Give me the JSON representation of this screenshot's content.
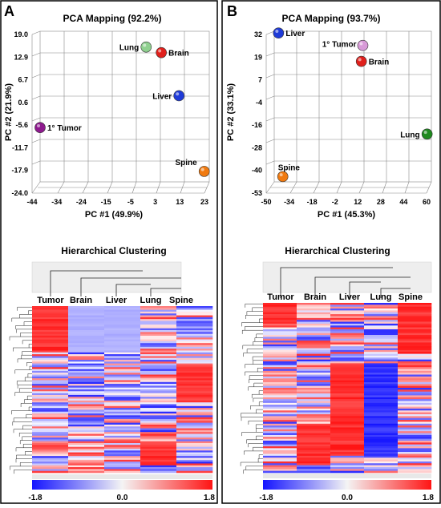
{
  "panels": [
    {
      "letter": "A",
      "pca": {
        "title": "PCA Mapping (92.2%)",
        "xlabel": "PC #1 (49.9%)",
        "ylabel": "PC #2 (21.9%)",
        "xticks": [
          "-44",
          "-34",
          "-24",
          "-15",
          "-5",
          "3",
          "13",
          "23"
        ],
        "yticks": [
          "19.0",
          "12.9",
          "6.7",
          "0.6",
          "-5.6",
          "-11.7",
          "-17.9",
          "-24.0"
        ]
      },
      "clustering": {
        "title": "Hierarchical Clustering",
        "columns": [
          "Tumor",
          "Brain",
          "Liver",
          "Lung",
          "Spine"
        ],
        "scale": [
          "-1.8",
          "0.0",
          "1.8"
        ]
      }
    },
    {
      "letter": "B",
      "pca": {
        "title": "PCA Mapping (93.7%)",
        "xlabel": "PC #1 (45.3%)",
        "ylabel": "PC #2 (33.1%)",
        "xticks": [
          "-50",
          "-34",
          "-18",
          "-2",
          "12",
          "28",
          "44",
          "60"
        ],
        "yticks": [
          "32",
          "19",
          "7",
          "-4",
          "-16",
          "-28",
          "-40",
          "-53"
        ]
      },
      "clustering": {
        "title": "Hierarchical Clustering",
        "columns": [
          "Tumor",
          "Brain",
          "Liver",
          "Lung",
          "Spine"
        ],
        "scale": [
          "-1.8",
          "0.0",
          "1.8"
        ]
      }
    }
  ],
  "chart_data": [
    {
      "type": "scatter",
      "title": "PCA Mapping (92.2%)",
      "xlabel": "PC #1 (49.9%)",
      "ylabel": "PC #2 (21.9%)",
      "xlim": [
        -44,
        23
      ],
      "ylim": [
        -24,
        19
      ],
      "points": [
        {
          "label": "Lung",
          "x": -2,
          "y": 14.5,
          "color": "#8fd08f"
        },
        {
          "label": "Brain",
          "x": 4,
          "y": 12.9,
          "color": "#e0201c"
        },
        {
          "label": "Liver",
          "x": 11,
          "y": 0.6,
          "color": "#1f3bd8"
        },
        {
          "label": "1° Tumor",
          "x": -44,
          "y": -8.5,
          "color": "#8e1a8e"
        },
        {
          "label": "Spine",
          "x": 21,
          "y": -21,
          "color": "#f07a10"
        }
      ]
    },
    {
      "type": "scatter",
      "title": "PCA Mapping (93.7%)",
      "xlabel": "PC #1 (45.3%)",
      "ylabel": "PC #2 (33.1%)",
      "xlim": [
        -50,
        60
      ],
      "ylim": [
        -53,
        32
      ],
      "points": [
        {
          "label": "Liver",
          "x": -47,
          "y": 31,
          "color": "#1f3bd8"
        },
        {
          "label": "1° Tumor",
          "x": 12,
          "y": 24,
          "color": "#d89ad8"
        },
        {
          "label": "Brain",
          "x": 11,
          "y": 15,
          "color": "#e0201c"
        },
        {
          "label": "Lung",
          "x": 57,
          "y": -26,
          "color": "#1f8a1f"
        },
        {
          "label": "Spine",
          "x": -44,
          "y": -50,
          "color": "#f07a10"
        }
      ]
    },
    {
      "type": "heatmap",
      "title": "Hierarchical Clustering",
      "columns": [
        "Tumor",
        "Brain",
        "Liver",
        "Lung",
        "Spine"
      ],
      "colorscale": {
        "min": -1.8,
        "mid": 0.0,
        "max": 1.8,
        "low": "#1a1aff",
        "high": "#ff1a1a"
      },
      "columns_profile": [
        {
          "name": "Tumor",
          "block": "top-high",
          "block_fraction": 0.27
        },
        {
          "name": "Brain",
          "block": "top-low",
          "block_fraction": 0.27
        },
        {
          "name": "Liver",
          "block": "top-low",
          "block_fraction": 0.27
        },
        {
          "name": "Lung",
          "block": "bottom-high",
          "block_fraction": 0.13
        },
        {
          "name": "Spine",
          "block": "middle-high",
          "block_fraction": 0.22
        }
      ]
    },
    {
      "type": "heatmap",
      "title": "Hierarchical Clustering",
      "columns": [
        "Tumor",
        "Brain",
        "Liver",
        "Lung",
        "Spine"
      ],
      "colorscale": {
        "min": -1.8,
        "mid": 0.0,
        "max": 1.8,
        "low": "#1a1aff",
        "high": "#ff1a1a"
      },
      "columns_profile": [
        {
          "name": "Tumor",
          "block": "top-high",
          "block_fraction": 0.12
        },
        {
          "name": "Brain",
          "block": "bottom-high",
          "block_fraction": 0.25
        },
        {
          "name": "Liver",
          "block": "middle-high",
          "block_fraction": 0.55
        },
        {
          "name": "Lung",
          "block": "middle-low",
          "block_fraction": 0.55
        },
        {
          "name": "Spine",
          "block": "top-high",
          "block_fraction": 0.3
        }
      ]
    }
  ]
}
